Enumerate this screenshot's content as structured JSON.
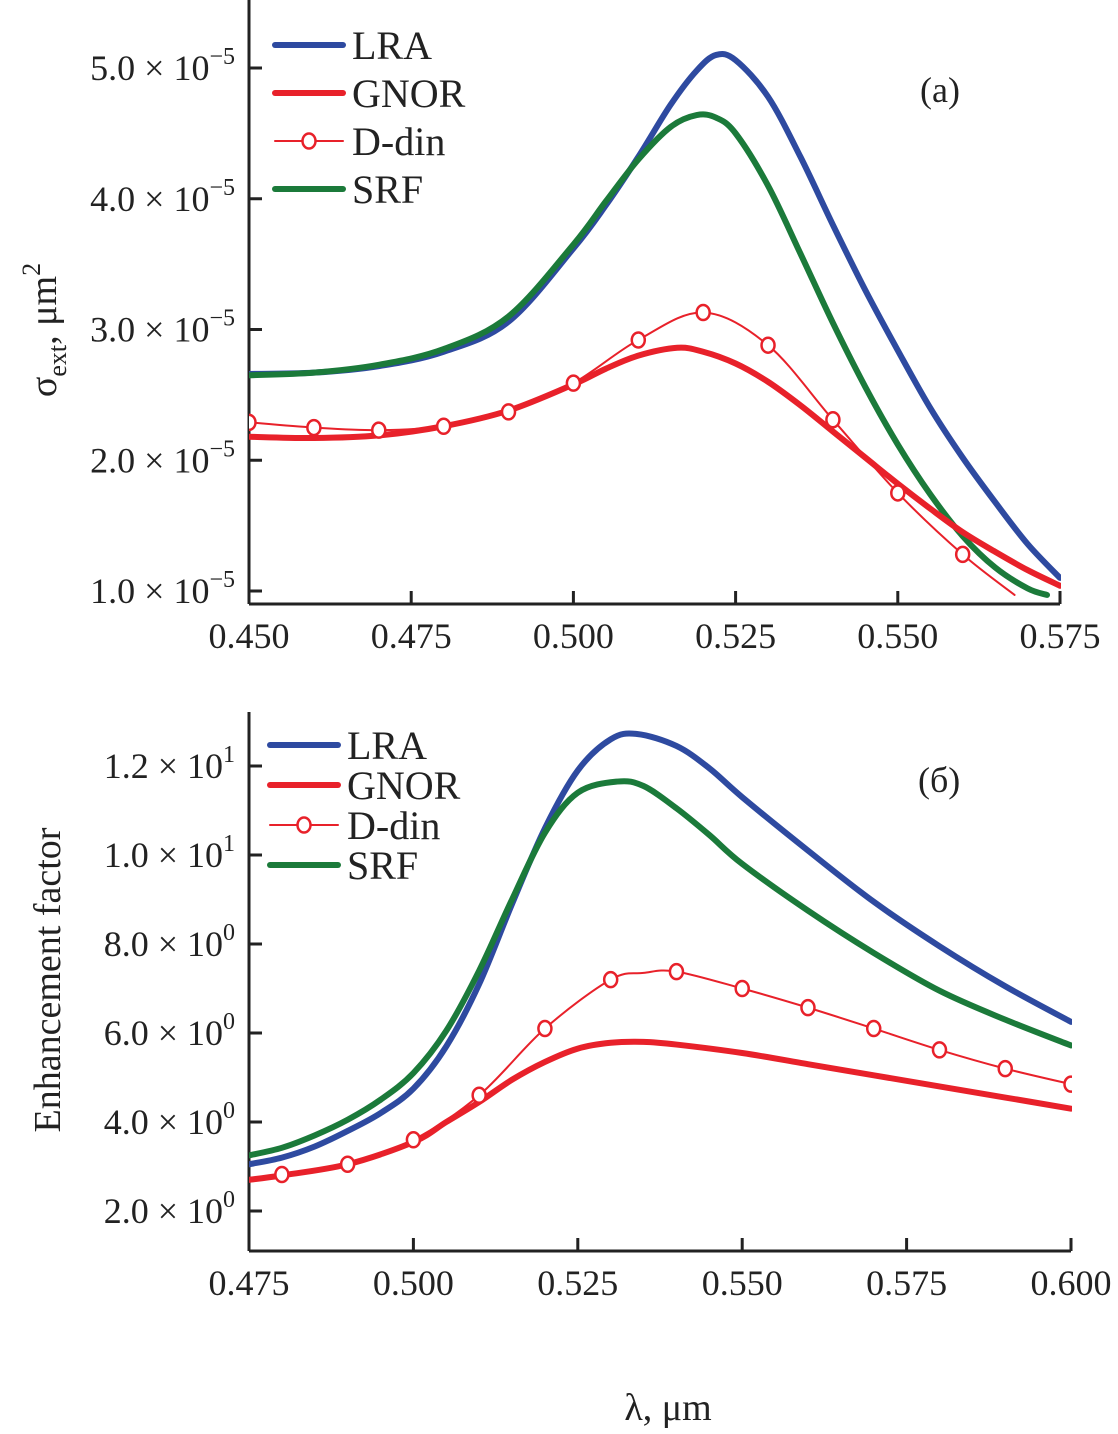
{
  "chart_data": [
    {
      "type": "line",
      "panel_label": "(a)",
      "xlabel": "",
      "ylabel": {
        "main": "σ",
        "sub": "ext",
        "rest": ", μm",
        "sup": "2"
      },
      "xlim": [
        0.45,
        0.575
      ],
      "ylim": [
        0.97,
        5.5
      ],
      "y_scale_label": "× 10⁻⁵",
      "x_ticks": [
        0.45,
        0.475,
        0.5,
        0.525,
        0.55,
        0.575
      ],
      "x_tick_labels": [
        "0.450",
        "0.475",
        "0.500",
        "0.525",
        "0.550",
        "0.575"
      ],
      "y_ticks": [
        1.0,
        2.0,
        3.0,
        4.0,
        5.0
      ],
      "y_tick_labels": [
        {
          "mant": "1.0",
          "exp": "−5"
        },
        {
          "mant": "2.0",
          "exp": "−5"
        },
        {
          "mant": "3.0",
          "exp": "−5"
        },
        {
          "mant": "4.0",
          "exp": "−5"
        },
        {
          "mant": "5.0",
          "exp": "−5"
        }
      ],
      "legend_position": "top-left",
      "grid": false,
      "series": [
        {
          "name": "LRA",
          "color": "#2e4aa0",
          "style": "thick",
          "x": [
            0.45,
            0.46,
            0.47,
            0.48,
            0.49,
            0.5,
            0.505,
            0.51,
            0.515,
            0.519,
            0.522,
            0.525,
            0.53,
            0.535,
            0.54,
            0.545,
            0.55,
            0.555,
            0.56,
            0.565,
            0.57,
            0.575
          ],
          "y": [
            2.66,
            2.67,
            2.72,
            2.83,
            3.06,
            3.62,
            3.95,
            4.32,
            4.72,
            4.98,
            5.1,
            5.06,
            4.78,
            4.32,
            3.8,
            3.3,
            2.84,
            2.4,
            2.02,
            1.68,
            1.36,
            1.1
          ]
        },
        {
          "name": "GNOR",
          "color": "#e8212a",
          "style": "thick",
          "x": [
            0.45,
            0.46,
            0.47,
            0.48,
            0.49,
            0.5,
            0.505,
            0.51,
            0.516,
            0.52,
            0.525,
            0.53,
            0.535,
            0.54,
            0.545,
            0.55,
            0.555,
            0.56,
            0.565,
            0.57,
            0.575
          ],
          "y": [
            2.18,
            2.17,
            2.19,
            2.26,
            2.38,
            2.58,
            2.7,
            2.8,
            2.86,
            2.83,
            2.74,
            2.6,
            2.42,
            2.22,
            2.02,
            1.82,
            1.63,
            1.45,
            1.3,
            1.16,
            1.04
          ]
        },
        {
          "name": "D-din",
          "color": "#e8212a",
          "style": "thin-markers",
          "x": [
            0.45,
            0.46,
            0.47,
            0.48,
            0.49,
            0.5,
            0.51,
            0.52,
            0.53,
            0.54,
            0.55,
            0.56,
            0.568
          ],
          "y": [
            2.29,
            2.25,
            2.23,
            2.26,
            2.37,
            2.59,
            2.92,
            3.13,
            2.88,
            2.31,
            1.75,
            1.28,
            0.97
          ],
          "markers_x": [
            0.45,
            0.46,
            0.47,
            0.48,
            0.49,
            0.5,
            0.51,
            0.52,
            0.53,
            0.54,
            0.55,
            0.56
          ]
        },
        {
          "name": "SRF",
          "color": "#1b7a3a",
          "style": "thick",
          "x": [
            0.45,
            0.46,
            0.47,
            0.48,
            0.49,
            0.5,
            0.505,
            0.51,
            0.515,
            0.519,
            0.522,
            0.525,
            0.53,
            0.535,
            0.54,
            0.545,
            0.55,
            0.555,
            0.56,
            0.565,
            0.57,
            0.573
          ],
          "y": [
            2.65,
            2.67,
            2.73,
            2.85,
            3.1,
            3.65,
            3.98,
            4.3,
            4.55,
            4.64,
            4.62,
            4.5,
            4.1,
            3.58,
            3.05,
            2.56,
            2.12,
            1.74,
            1.42,
            1.18,
            1.02,
            0.97
          ]
        }
      ]
    },
    {
      "type": "line",
      "panel_label": "(б)",
      "xlabel": "λ, μm",
      "ylabel": "Enhancement factor",
      "xlim": [
        0.475,
        0.6
      ],
      "ylim": [
        1.15,
        13.0
      ],
      "x_ticks": [
        0.475,
        0.5,
        0.525,
        0.55,
        0.575,
        0.6
      ],
      "x_tick_labels": [
        "0.475",
        "0.500",
        "0.525",
        "0.550",
        "0.575",
        "0.600"
      ],
      "y_ticks": [
        2.0,
        4.0,
        6.0,
        8.0,
        10.0,
        12.0
      ],
      "y_tick_labels": [
        {
          "mant": "2.0",
          "exp": "0"
        },
        {
          "mant": "4.0",
          "exp": "0"
        },
        {
          "mant": "6.0",
          "exp": "0"
        },
        {
          "mant": "8.0",
          "exp": "0"
        },
        {
          "mant": "1.0",
          "exp": "1"
        },
        {
          "mant": "1.2",
          "exp": "1"
        }
      ],
      "legend_position": "top-left",
      "grid": false,
      "series": [
        {
          "name": "LRA",
          "color": "#2e4aa0",
          "style": "thick",
          "x": [
            0.475,
            0.48,
            0.485,
            0.49,
            0.495,
            0.5,
            0.505,
            0.51,
            0.515,
            0.52,
            0.525,
            0.53,
            0.534,
            0.54,
            0.545,
            0.55,
            0.56,
            0.57,
            0.58,
            0.59,
            0.6
          ],
          "y": [
            3.05,
            3.2,
            3.45,
            3.8,
            4.2,
            4.75,
            5.7,
            7.1,
            8.9,
            10.6,
            11.9,
            12.6,
            12.72,
            12.45,
            11.95,
            11.3,
            10.1,
            8.95,
            7.95,
            7.05,
            6.25
          ]
        },
        {
          "name": "GNOR",
          "color": "#e8212a",
          "style": "thick",
          "x": [
            0.475,
            0.48,
            0.49,
            0.5,
            0.505,
            0.51,
            0.515,
            0.52,
            0.525,
            0.53,
            0.535,
            0.54,
            0.55,
            0.56,
            0.57,
            0.58,
            0.59,
            0.6
          ],
          "y": [
            2.7,
            2.8,
            3.05,
            3.55,
            4.0,
            4.45,
            4.95,
            5.35,
            5.65,
            5.78,
            5.8,
            5.74,
            5.55,
            5.3,
            5.05,
            4.8,
            4.55,
            4.3
          ]
        },
        {
          "name": "D-din",
          "color": "#e8212a",
          "style": "thin-markers",
          "x": [
            0.48,
            0.49,
            0.5,
            0.51,
            0.52,
            0.53,
            0.535,
            0.54,
            0.55,
            0.56,
            0.57,
            0.58,
            0.59,
            0.6
          ],
          "y": [
            2.82,
            3.05,
            3.6,
            4.6,
            6.1,
            7.2,
            7.35,
            7.38,
            7.0,
            6.57,
            6.1,
            5.62,
            5.2,
            4.85
          ],
          "markers_x": [
            0.48,
            0.49,
            0.5,
            0.51,
            0.52,
            0.53,
            0.54,
            0.55,
            0.56,
            0.57,
            0.58,
            0.59,
            0.6
          ]
        },
        {
          "name": "SRF",
          "color": "#1b7a3a",
          "style": "thick",
          "x": [
            0.475,
            0.48,
            0.485,
            0.49,
            0.495,
            0.5,
            0.505,
            0.51,
            0.515,
            0.52,
            0.525,
            0.531,
            0.535,
            0.54,
            0.545,
            0.55,
            0.56,
            0.57,
            0.58,
            0.59,
            0.6
          ],
          "y": [
            3.25,
            3.42,
            3.7,
            4.05,
            4.5,
            5.1,
            6.05,
            7.4,
            9.0,
            10.5,
            11.4,
            11.65,
            11.55,
            11.05,
            10.45,
            9.8,
            8.75,
            7.8,
            6.95,
            6.3,
            5.72
          ]
        }
      ]
    }
  ]
}
